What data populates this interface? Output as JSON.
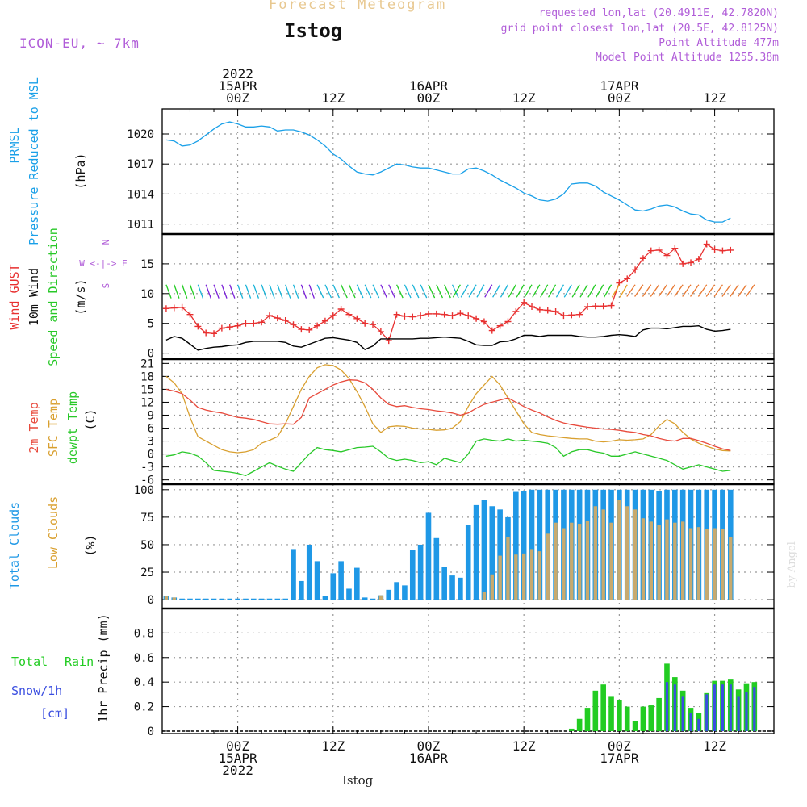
{
  "header": {
    "title": "Forecast Meteogram",
    "station": "Istog",
    "model": "ICON-EU, ~ 7km",
    "requested": "requested lon,lat (20.4911E, 42.7820N)",
    "gridpoint": "grid point closest lon,lat (20.5E, 42.8125N)",
    "point_alt": "Point Altitude 477m",
    "model_alt": "Model Point Altitude 1255.38m",
    "footer_station": "Istog",
    "watermark": "by Angel"
  },
  "colors": {
    "pressure": "#1aa0e8",
    "gust": "#e83030",
    "wind": "#000000",
    "temp": "#e84a3c",
    "sfc_temp": "#d9a030",
    "dewpt": "#28c828",
    "total_clouds": "#1f98e6",
    "low_clouds": "#c8aa6e",
    "rain": "#22cc22",
    "snow": "#3a4ee0",
    "title": "#e8c890",
    "purple": "#b05cd8"
  },
  "time_axis": {
    "top_ticks": [
      {
        "hour": 0,
        "lines": [
          "2022",
          "15APR",
          "00Z"
        ]
      },
      {
        "hour": 12,
        "lines": [
          "12Z"
        ]
      },
      {
        "hour": 24,
        "lines": [
          "16APR",
          "00Z"
        ]
      },
      {
        "hour": 36,
        "lines": [
          "12Z"
        ]
      },
      {
        "hour": 48,
        "lines": [
          "17APR",
          "00Z"
        ]
      },
      {
        "hour": 60,
        "lines": [
          "12Z"
        ]
      }
    ],
    "bottom_ticks": [
      {
        "hour": 0,
        "lines": [
          "00Z",
          "15APR",
          "2022"
        ]
      },
      {
        "hour": 12,
        "lines": [
          "12Z"
        ]
      },
      {
        "hour": 24,
        "lines": [
          "00Z",
          "16APR"
        ]
      },
      {
        "hour": 36,
        "lines": [
          "12Z"
        ]
      },
      {
        "hour": 48,
        "lines": [
          "00Z",
          "17APR"
        ]
      },
      {
        "hour": 60,
        "lines": [
          "12Z"
        ]
      }
    ]
  },
  "panels": {
    "pressure": {
      "labels": [
        "PRMSL",
        "Pressure Reduced to MSL",
        "(hPa)"
      ],
      "ticks": [
        "1011",
        "1014",
        "1017",
        "1020"
      ]
    },
    "wind": {
      "labels": [
        "Wind GUST",
        "10m Wind",
        "Speed and Direction",
        "(m/s)"
      ],
      "ticks": [
        "0",
        "5",
        "10",
        "15"
      ],
      "compass": [
        "N",
        "W <-|-> E",
        "S"
      ]
    },
    "temp": {
      "labels": [
        "2m Temp",
        "SFC Temp",
        "dewpt Temp",
        "(C)"
      ],
      "ticks": [
        "-6",
        "-3",
        "0",
        "3",
        "6",
        "9",
        "12",
        "15",
        "18",
        "21"
      ]
    },
    "clouds": {
      "labels": [
        "Total Clouds",
        "Low Clouds",
        "(%)"
      ],
      "ticks": [
        "0",
        "25",
        "50",
        "75",
        "100"
      ]
    },
    "precip": {
      "labels": [
        "Total",
        "Rain",
        "Snow/1h",
        "[cm]",
        "1hr Precip (mm)"
      ],
      "ticks": [
        "0",
        "0.2",
        "0.4",
        "0.6",
        "0.8"
      ]
    }
  },
  "chart_data": [
    {
      "type": "line",
      "title": "PRMSL Pressure Reduced to MSL",
      "ylabel": "hPa",
      "ylim": [
        1010,
        1022.5
      ],
      "x_hours": [
        -9,
        -8,
        -7,
        -6,
        -5,
        -4,
        -3,
        -2,
        -1,
        0,
        1,
        2,
        3,
        4,
        5,
        6,
        7,
        8,
        9,
        10,
        11,
        12,
        13,
        14,
        15,
        16,
        17,
        18,
        19,
        20,
        21,
        22,
        23,
        24,
        25,
        26,
        27,
        28,
        29,
        30,
        31,
        32,
        33,
        34,
        35,
        36,
        37,
        38,
        39,
        40,
        41,
        42,
        43,
        44,
        45,
        46,
        47,
        48,
        49,
        50,
        51,
        52,
        53,
        54,
        55,
        56,
        57,
        58,
        59,
        60,
        61,
        62,
        63,
        64,
        65
      ],
      "series": [
        {
          "values": [
            1019.4,
            1019.3,
            1018.8,
            1018.9,
            1019.3,
            1019.9,
            1020.5,
            1021.0,
            1021.2,
            1021.0,
            1020.7,
            1020.7,
            1020.8,
            1020.7,
            1020.3,
            1020.4,
            1020.4,
            1020.2,
            1019.9,
            1019.4,
            1018.8,
            1018.0,
            1017.5,
            1016.8,
            1016.2,
            1016.0,
            1015.9,
            1016.2,
            1016.6,
            1017.0,
            1016.9,
            1016.7,
            1016.6,
            1016.6,
            1016.4,
            1016.2,
            1016.0,
            1016.0,
            1016.5,
            1016.6,
            1016.3,
            1015.9,
            1015.4,
            1015.0,
            1014.6,
            1014.1,
            1013.8,
            1013.4,
            1013.3,
            1013.5,
            1014.0,
            1015.0,
            1015.1,
            1015.1,
            1014.8,
            1014.2,
            1013.8,
            1013.4,
            1012.9,
            1012.4,
            1012.3,
            1012.5,
            1012.8,
            1012.9,
            1012.7,
            1012.3,
            1012.0,
            1011.9,
            1011.4,
            1011.2,
            1011.2,
            1011.6
          ]
        }
      ]
    },
    {
      "type": "line",
      "title": "Wind GUST / 10m Wind Speed and Direction",
      "ylabel": "m/s",
      "ylim": [
        -1,
        20
      ],
      "x_hours": [
        -9,
        -8,
        -7,
        -6,
        -5,
        -4,
        -3,
        -2,
        -1,
        0,
        1,
        2,
        3,
        4,
        5,
        6,
        7,
        8,
        9,
        10,
        11,
        12,
        13,
        14,
        15,
        16,
        17,
        18,
        19,
        20,
        21,
        22,
        23,
        24,
        25,
        26,
        27,
        28,
        29,
        30,
        31,
        32,
        33,
        34,
        35,
        36,
        37,
        38,
        39,
        40,
        41,
        42,
        43,
        44,
        45,
        46,
        47,
        48,
        49,
        50,
        51,
        52,
        53,
        54,
        55,
        56,
        57,
        58,
        59,
        60,
        61,
        62,
        63,
        64,
        65
      ],
      "series": [
        {
          "name": "Wind GUST",
          "values": [
            7.5,
            7.6,
            7.7,
            6.5,
            4.5,
            3.4,
            3.3,
            4.2,
            4.4,
            4.6,
            5.0,
            5.0,
            5.2,
            6.3,
            5.9,
            5.5,
            4.8,
            4.0,
            3.9,
            4.6,
            5.4,
            6.3,
            7.4,
            6.5,
            5.8,
            5.0,
            4.8,
            3.6,
            2.1,
            6.5,
            6.2,
            6.1,
            6.3,
            6.6,
            6.6,
            6.5,
            6.3,
            6.7,
            6.3,
            5.8,
            5.3,
            3.8,
            4.6,
            5.3,
            7.0,
            8.5,
            7.8,
            7.3,
            7.2,
            7.0,
            6.3,
            6.4,
            6.5,
            7.8,
            7.9,
            7.9,
            8.0,
            11.8,
            12.5,
            14.0,
            15.9,
            17.2,
            17.3,
            16.4,
            17.6,
            15.0,
            15.2,
            15.8,
            18.3,
            17.4,
            17.2,
            17.3
          ]
        },
        {
          "name": "10m Wind",
          "values": [
            2.2,
            2.8,
            2.5,
            1.5,
            0.5,
            0.8,
            1.0,
            1.1,
            1.3,
            1.4,
            1.8,
            2.0,
            2.0,
            2.0,
            2.0,
            1.8,
            1.2,
            1.0,
            1.5,
            2.0,
            2.5,
            2.6,
            2.4,
            2.2,
            1.8,
            0.6,
            1.2,
            2.4,
            2.4,
            2.4,
            2.4,
            2.4,
            2.5,
            2.5,
            2.6,
            2.7,
            2.6,
            2.5,
            2.0,
            1.4,
            1.3,
            1.3,
            1.9,
            2.0,
            2.4,
            3.0,
            3.0,
            2.8,
            3.0,
            3.0,
            3.0,
            3.0,
            2.8,
            2.7,
            2.7,
            2.8,
            3.0,
            3.1,
            3.0,
            2.8,
            3.9,
            4.2,
            4.2,
            4.1,
            4.3,
            4.5,
            4.5,
            4.6,
            4.0,
            3.7,
            3.8,
            4.0
          ]
        }
      ]
    },
    {
      "type": "line",
      "title": "2m Temp / SFC Temp / dewpt Temp",
      "ylabel": "C",
      "ylim": [
        -7,
        22
      ],
      "x_hours": [
        -9,
        -8,
        -7,
        -6,
        -5,
        -4,
        -3,
        -2,
        -1,
        0,
        1,
        2,
        3,
        4,
        5,
        6,
        7,
        8,
        9,
        10,
        11,
        12,
        13,
        14,
        15,
        16,
        17,
        18,
        19,
        20,
        21,
        22,
        23,
        24,
        25,
        26,
        27,
        28,
        29,
        30,
        31,
        32,
        33,
        34,
        35,
        36,
        37,
        38,
        39,
        40,
        41,
        42,
        43,
        44,
        45,
        46,
        47,
        48,
        49,
        50,
        51,
        52,
        53,
        54,
        55,
        56,
        57,
        58,
        59,
        60,
        61,
        62,
        63,
        64,
        65
      ],
      "series": [
        {
          "name": "2m Temp",
          "values": [
            15.0,
            14.6,
            14.0,
            12.5,
            10.8,
            10.2,
            9.8,
            9.5,
            9.0,
            8.5,
            8.3,
            8.0,
            7.5,
            7.0,
            6.9,
            7.0,
            6.9,
            8.5,
            13.0,
            14.0,
            15.0,
            16.0,
            16.7,
            17.2,
            17.1,
            16.5,
            15.0,
            13.0,
            11.5,
            11.0,
            11.2,
            10.8,
            10.5,
            10.3,
            10.0,
            9.8,
            9.5,
            9.0,
            9.5,
            10.6,
            11.5,
            12.0,
            12.5,
            13.0,
            12.0,
            11.0,
            10.2,
            9.5,
            8.6,
            7.8,
            7.2,
            6.8,
            6.5,
            6.2,
            6.0,
            5.8,
            5.7,
            5.5,
            5.2,
            5.0,
            4.5,
            4.2,
            3.6,
            3.2,
            3.0,
            3.6,
            3.6,
            3.1,
            2.5,
            1.8,
            1.2,
            0.8
          ]
        },
        {
          "name": "SFC Temp",
          "values": [
            18.0,
            16.5,
            14.0,
            8.5,
            4.0,
            3.0,
            2.0,
            1.0,
            0.5,
            0.3,
            0.5,
            1.0,
            2.5,
            3.2,
            4.0,
            7.0,
            11.0,
            15.0,
            18.0,
            20.0,
            20.7,
            20.5,
            19.5,
            17.5,
            14.5,
            11.0,
            7.0,
            5.0,
            6.3,
            6.5,
            6.4,
            6.0,
            5.8,
            5.7,
            5.5,
            5.6,
            6.0,
            7.5,
            11.0,
            14.0,
            16.0,
            18.0,
            16.0,
            13.0,
            10.0,
            7.0,
            5.0,
            4.5,
            4.2,
            4.0,
            3.8,
            3.6,
            3.5,
            3.5,
            3.0,
            2.8,
            3.0,
            3.3,
            3.2,
            3.3,
            3.5,
            4.5,
            6.5,
            8.0,
            7.0,
            5.0,
            3.5,
            2.5,
            1.8,
            1.2,
            0.8,
            0.7
          ]
        },
        {
          "name": "dewpt Temp",
          "values": [
            -0.5,
            -0.2,
            0.5,
            0.2,
            -0.5,
            -2.0,
            -3.8,
            -4.0,
            -4.2,
            -4.5,
            -5.0,
            -4.0,
            -3.0,
            -2.0,
            -2.8,
            -3.5,
            -4.0,
            -2.0,
            0.0,
            1.5,
            1.0,
            0.8,
            0.5,
            1.0,
            1.5,
            1.6,
            1.8,
            0.5,
            -1.0,
            -1.5,
            -1.2,
            -1.5,
            -2.0,
            -1.8,
            -2.5,
            -1.0,
            -1.5,
            -2.0,
            0.0,
            3.0,
            3.5,
            3.2,
            3.0,
            3.5,
            3.0,
            3.2,
            3.0,
            2.8,
            2.5,
            1.5,
            -0.5,
            0.5,
            1.0,
            1.0,
            0.5,
            0.2,
            -0.5,
            -0.5,
            0.0,
            0.5,
            0.0,
            -0.5,
            -1.0,
            -1.5,
            -2.5,
            -3.5,
            -3.0,
            -2.5,
            -3.0,
            -3.5,
            -4.0,
            -3.8
          ]
        }
      ]
    },
    {
      "type": "bar",
      "title": "Total Clouds / Low Clouds",
      "ylabel": "%",
      "ylim": [
        -8,
        105
      ],
      "x_hours": [
        -9,
        -8,
        -7,
        -6,
        -5,
        -4,
        -3,
        -2,
        -1,
        0,
        1,
        2,
        3,
        4,
        5,
        6,
        7,
        8,
        9,
        10,
        11,
        12,
        13,
        14,
        15,
        16,
        17,
        18,
        19,
        20,
        21,
        22,
        23,
        24,
        25,
        26,
        27,
        28,
        29,
        30,
        31,
        32,
        33,
        34,
        35,
        36,
        37,
        38,
        39,
        40,
        41,
        42,
        43,
        44,
        45,
        46,
        47,
        48,
        49,
        50,
        51,
        52,
        53,
        54,
        55,
        56,
        57,
        58,
        59,
        60,
        61,
        62,
        63,
        64,
        65
      ],
      "series": [
        {
          "name": "Total Clouds",
          "values": [
            3,
            2,
            1,
            1,
            1,
            1,
            1,
            1,
            1,
            1,
            1,
            1,
            1,
            1,
            1,
            1,
            46,
            17,
            50,
            35,
            3,
            24,
            35,
            10,
            29,
            2,
            1,
            4,
            9,
            16,
            13,
            45,
            50,
            79,
            56,
            30,
            22,
            20,
            68,
            86,
            91,
            85,
            82,
            75,
            98,
            99,
            100,
            100,
            100,
            100,
            100,
            100,
            100,
            100,
            100,
            100,
            100,
            100,
            100,
            100,
            100,
            100,
            99,
            100,
            100,
            100,
            100,
            100,
            100,
            100,
            100,
            100
          ]
        },
        {
          "name": "Low Clouds",
          "values": [
            3,
            2,
            0,
            0,
            0,
            0,
            0,
            0,
            0,
            0,
            0,
            0,
            0,
            0,
            0,
            0,
            0,
            0,
            0,
            0,
            0,
            0,
            0,
            0,
            0,
            0,
            0,
            4,
            0,
            0,
            0,
            0,
            0,
            0,
            0,
            0,
            0,
            0,
            0,
            0,
            7,
            23,
            40,
            57,
            41,
            42,
            46,
            44,
            60,
            70,
            65,
            70,
            69,
            72,
            85,
            82,
            70,
            91,
            85,
            82,
            74,
            71,
            68,
            73,
            70,
            71,
            65,
            66,
            64,
            65,
            64,
            57
          ]
        }
      ]
    },
    {
      "type": "bar",
      "title": "1hr Precip",
      "ylabel": "mm",
      "ylim": [
        -0.02,
        1.0
      ],
      "x_hours": [
        42,
        43,
        44,
        45,
        46,
        47,
        48,
        49,
        50,
        51,
        52,
        53,
        54,
        55,
        56,
        57,
        58,
        59,
        60,
        61,
        62,
        63,
        64,
        65
      ],
      "series": [
        {
          "name": "Total Rain",
          "values": [
            0.02,
            0.1,
            0.19,
            0.33,
            0.38,
            0.28,
            0.25,
            0.2,
            0.08,
            0.2,
            0.21,
            0.27,
            0.55,
            0.44,
            0.33,
            0.19,
            0.15,
            0.31,
            0.41,
            0.41,
            0.42,
            0.34,
            0.39,
            0.4
          ]
        },
        {
          "name": "Snow/1h",
          "values": [
            0,
            0,
            0,
            0,
            0,
            0,
            0,
            0,
            0,
            0,
            0,
            0,
            0.4,
            0.38,
            0.28,
            0.15,
            0.1,
            0.3,
            0.38,
            0.38,
            0.38,
            0.28,
            0.32,
            0.36
          ]
        }
      ]
    }
  ]
}
